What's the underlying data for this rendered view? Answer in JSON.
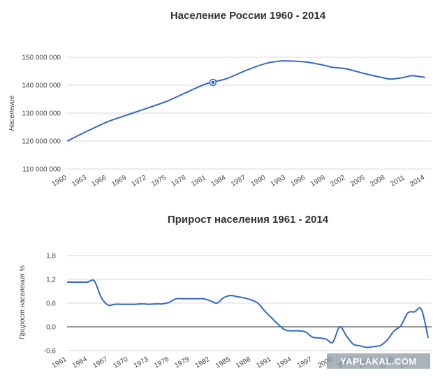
{
  "chart_data": [
    {
      "type": "line",
      "title": "Население России 1960 - 2014",
      "xlabel": "",
      "ylabel": "Население",
      "ylim": [
        110000000,
        150000000
      ],
      "y_tick_labels": [
        "110 000 000",
        "120 000 000",
        "130 000 000",
        "140 000 000",
        "150 000 000"
      ],
      "x_tick_labels": [
        "1960",
        "1963",
        "1966",
        "1969",
        "1972",
        "1975",
        "1978",
        "1981",
        "1984",
        "1987",
        "1990",
        "1993",
        "1996",
        "1999",
        "2002",
        "2005",
        "2008",
        "2011",
        "2014"
      ],
      "grid": true,
      "color": "#3366cc",
      "highlight": {
        "x": 1982,
        "y": 141000000
      },
      "series": [
        {
          "x": [
            1960,
            1963,
            1966,
            1969,
            1972,
            1975,
            1978,
            1981,
            1984,
            1987,
            1990,
            1992,
            1993,
            1996,
            1999,
            2000,
            2002,
            2005,
            2008,
            2009,
            2011,
            2012,
            2014
          ],
          "values": [
            120000000,
            123500000,
            126800000,
            129300000,
            131700000,
            134200000,
            137400000,
            140500000,
            142300000,
            145300000,
            147800000,
            148600000,
            148700000,
            148300000,
            147000000,
            146400000,
            145900000,
            144100000,
            142500000,
            142200000,
            142900000,
            143400000,
            142800000
          ]
        }
      ]
    },
    {
      "type": "line",
      "title": "Прирост населения 1961 - 2014",
      "xlabel": "",
      "ylabel": "Прирост населения %",
      "ylim": [
        -0.6,
        1.8
      ],
      "y_tick_labels": [
        "-0,6",
        "0,0",
        "0,6",
        "1,2",
        "1,8"
      ],
      "x_tick_labels": [
        "1961",
        "1964",
        "1967",
        "1970",
        "1973",
        "1976",
        "1979",
        "1982",
        "1985",
        "1988",
        "1991",
        "1994",
        "1997",
        "2000",
        "2003",
        "2006",
        "2009",
        "2012"
      ],
      "grid": true,
      "color": "#3366cc",
      "series": [
        {
          "x": [
            1961,
            1962,
            1963,
            1964,
            1965,
            1966,
            1967,
            1968,
            1969,
            1970,
            1971,
            1972,
            1973,
            1974,
            1975,
            1976,
            1977,
            1978,
            1979,
            1980,
            1981,
            1982,
            1983,
            1984,
            1985,
            1986,
            1987,
            1988,
            1989,
            1990,
            1991,
            1992,
            1993,
            1994,
            1995,
            1996,
            1997,
            1998,
            1999,
            2000,
            2001,
            2002,
            2003,
            2004,
            2005,
            2006,
            2007,
            2008,
            2009,
            2010,
            2011,
            2012,
            2013,
            2014
          ],
          "values": [
            1.13,
            1.13,
            1.13,
            1.13,
            1.16,
            0.75,
            0.55,
            0.57,
            0.57,
            0.57,
            0.57,
            0.58,
            0.57,
            0.58,
            0.58,
            0.62,
            0.71,
            0.71,
            0.71,
            0.71,
            0.71,
            0.66,
            0.6,
            0.74,
            0.79,
            0.76,
            0.73,
            0.68,
            0.6,
            0.4,
            0.23,
            0.06,
            -0.08,
            -0.1,
            -0.1,
            -0.13,
            -0.26,
            -0.28,
            -0.31,
            -0.39,
            0.0,
            -0.23,
            -0.44,
            -0.48,
            -0.52,
            -0.5,
            -0.47,
            -0.33,
            -0.1,
            0.03,
            0.35,
            0.38,
            0.44,
            -0.28
          ]
        }
      ]
    }
  ],
  "watermark": "YAPLAKAL.COM"
}
